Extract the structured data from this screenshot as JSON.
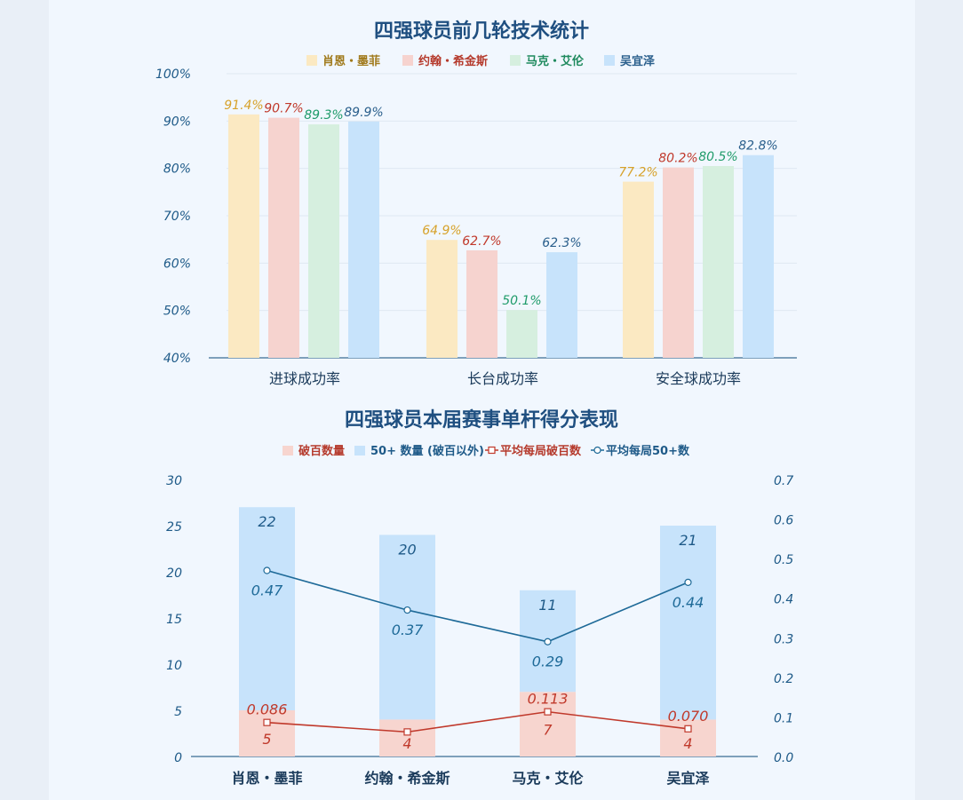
{
  "chart_data": [
    {
      "type": "bar",
      "title": "四强球员前几轮技术统计",
      "categories": [
        "进球成功率",
        "长台成功率",
        "安全球成功率"
      ],
      "series": [
        {
          "name": "肖恩・墨菲",
          "values": [
            91.4,
            64.9,
            77.2
          ],
          "labels": [
            "91.4%",
            "64.9%",
            "77.2%"
          ],
          "color": "#fbe9c2",
          "label_color": "#d7a22a",
          "legend_color": "#a07a1c"
        },
        {
          "name": "约翰・希金斯",
          "values": [
            90.7,
            62.7,
            80.2
          ],
          "labels": [
            "90.7%",
            "62.7%",
            "80.2%"
          ],
          "color": "#f6d3cf",
          "label_color": "#c0392b",
          "legend_color": "#b53a2c"
        },
        {
          "name": "马克・艾伦",
          "values": [
            89.3,
            50.1,
            80.5
          ],
          "labels": [
            "89.3%",
            "50.1%",
            "80.5%"
          ],
          "color": "#d6efdf",
          "label_color": "#1f9b6a",
          "legend_color": "#1f8a5e"
        },
        {
          "name": "吴宜泽",
          "values": [
            89.9,
            62.3,
            82.8
          ],
          "labels": [
            "89.9%",
            "62.3%",
            "82.8%"
          ],
          "color": "#c7e3fb",
          "label_color": "#2a5f8c",
          "legend_color": "#2a5f8c"
        }
      ],
      "ylim": [
        40,
        100
      ],
      "yticks": [
        "40%",
        "50%",
        "60%",
        "70%",
        "80%",
        "90%",
        "100%"
      ],
      "grid": true,
      "legend": "top"
    },
    {
      "type": "bar",
      "title": "四强球员本届赛事单杆得分表现",
      "categories": [
        "肖恩・墨菲",
        "约翰・希金斯",
        "马克・艾伦",
        "吴宜泽"
      ],
      "stacked_series": [
        {
          "name": "破百数量",
          "values": [
            5,
            4,
            7,
            4
          ],
          "color": "#f7d5cf",
          "label_color": "#c0392b"
        },
        {
          "name": "50+ 数量 (破百以外)",
          "values": [
            22,
            20,
            11,
            21
          ],
          "color": "#c7e3fb",
          "label_color": "#1e5a88"
        }
      ],
      "line_series": [
        {
          "name": "平均每局破百数",
          "values": [
            0.086,
            0.062,
            0.113,
            0.07
          ],
          "labels": [
            "0.086",
            "",
            "0.113",
            "0.070"
          ],
          "color": "#c0392b",
          "marker": "square",
          "axis": "right"
        },
        {
          "name": "平均每局50+数",
          "values": [
            0.47,
            0.37,
            0.29,
            0.44
          ],
          "labels": [
            "0.47",
            "0.37",
            "0.29",
            "0.44"
          ],
          "color": "#1e6a98",
          "marker": "circle",
          "axis": "right"
        }
      ],
      "ylim_left": [
        0,
        30
      ],
      "yticks_left": [
        "0",
        "5",
        "10",
        "15",
        "20",
        "25",
        "30"
      ],
      "ylim_right": [
        0,
        0.7
      ],
      "yticks_right": [
        "0.0",
        "0.1",
        "0.2",
        "0.3",
        "0.4",
        "0.5",
        "0.6",
        "0.7"
      ],
      "legend": "top"
    }
  ]
}
